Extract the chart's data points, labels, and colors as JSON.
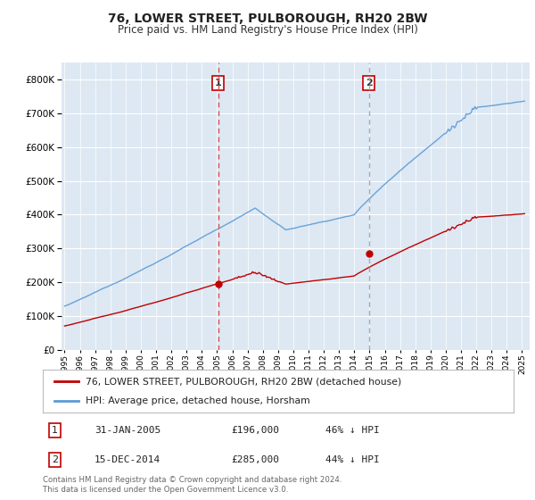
{
  "title": "76, LOWER STREET, PULBOROUGH, RH20 2BW",
  "subtitle": "Price paid vs. HM Land Registry's House Price Index (HPI)",
  "ylim": [
    0,
    850000
  ],
  "xlim_start": 1994.8,
  "xlim_end": 2025.5,
  "sale1_x": 2005.08,
  "sale1_y": 196000,
  "sale2_x": 2014.96,
  "sale2_y": 285000,
  "hpi_color": "#5b9bd5",
  "price_color": "#c00000",
  "vline1_color": "#e05050",
  "vline2_color": "#aaaaaa",
  "background_plot": "#dde8f3",
  "grid_color": "#ffffff",
  "legend_line1": "76, LOWER STREET, PULBOROUGH, RH20 2BW (detached house)",
  "legend_line2": "HPI: Average price, detached house, Horsham",
  "table_row1": [
    "1",
    "31-JAN-2005",
    "£196,000",
    "46% ↓ HPI"
  ],
  "table_row2": [
    "2",
    "15-DEC-2014",
    "£285,000",
    "44% ↓ HPI"
  ],
  "footnote": "Contains HM Land Registry data © Crown copyright and database right 2024.\nThis data is licensed under the Open Government Licence v3.0."
}
